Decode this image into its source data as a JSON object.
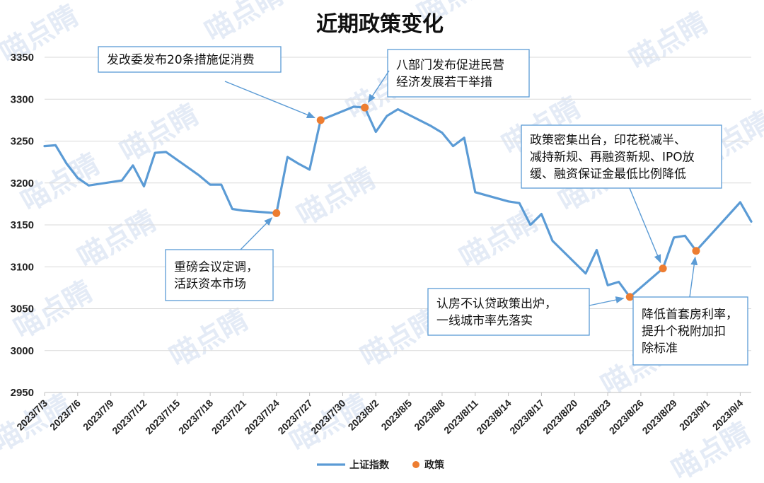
{
  "chart_data": {
    "type": "line",
    "title": "近期政策变化",
    "ylim": [
      2950,
      3350
    ],
    "y_ticks": [
      "3350",
      "3300",
      "3250",
      "3200",
      "3150",
      "3100",
      "3050",
      "3000",
      "2950"
    ],
    "x_ticks": [
      "2023/7/3",
      "2023/7/6",
      "2023/7/9",
      "2023/7/12",
      "2023/7/15",
      "2023/7/18",
      "2023/7/21",
      "2023/7/24",
      "2023/7/27",
      "2023/7/30",
      "2023/8/2",
      "2023/8/5",
      "2023/8/8",
      "2023/8/11",
      "2023/8/14",
      "2023/8/17",
      "2023/8/20",
      "2023/8/23",
      "2023/8/26",
      "2023/8/29",
      "2023/9/1",
      "2023/9/4"
    ],
    "x_start": "2023/7/3",
    "x_end": "2023/9/5",
    "grid": true,
    "legend_position": "bottom",
    "series": [
      {
        "name": "上证指数",
        "color": "#5b9bd5",
        "points": [
          [
            "2023/7/3",
            3244
          ],
          [
            "2023/7/4",
            3245
          ],
          [
            "2023/7/5",
            3223
          ],
          [
            "2023/7/6",
            3206
          ],
          [
            "2023/7/7",
            3197
          ],
          [
            "2023/7/10",
            3203
          ],
          [
            "2023/7/11",
            3221
          ],
          [
            "2023/7/12",
            3196
          ],
          [
            "2023/7/13",
            3236
          ],
          [
            "2023/7/14",
            3237
          ],
          [
            "2023/7/17",
            3209
          ],
          [
            "2023/7/18",
            3198
          ],
          [
            "2023/7/19",
            3198
          ],
          [
            "2023/7/20",
            3169
          ],
          [
            "2023/7/21",
            3167
          ],
          [
            "2023/7/24",
            3164
          ],
          [
            "2023/7/25",
            3231
          ],
          [
            "2023/7/26",
            3223
          ],
          [
            "2023/7/27",
            3216
          ],
          [
            "2023/7/28",
            3275
          ],
          [
            "2023/7/31",
            3291
          ],
          [
            "2023/8/1",
            3290
          ],
          [
            "2023/8/2",
            3261
          ],
          [
            "2023/8/3",
            3280
          ],
          [
            "2023/8/4",
            3288
          ],
          [
            "2023/8/7",
            3268
          ],
          [
            "2023/8/8",
            3260
          ],
          [
            "2023/8/9",
            3244
          ],
          [
            "2023/8/10",
            3254
          ],
          [
            "2023/8/11",
            3189
          ],
          [
            "2023/8/14",
            3178
          ],
          [
            "2023/8/15",
            3176
          ],
          [
            "2023/8/16",
            3150
          ],
          [
            "2023/8/17",
            3163
          ],
          [
            "2023/8/18",
            3131
          ],
          [
            "2023/8/21",
            3092
          ],
          [
            "2023/8/22",
            3120
          ],
          [
            "2023/8/23",
            3078
          ],
          [
            "2023/8/24",
            3082
          ],
          [
            "2023/8/25",
            3064
          ],
          [
            "2023/8/28",
            3098
          ],
          [
            "2023/8/29",
            3135
          ],
          [
            "2023/8/30",
            3137
          ],
          [
            "2023/8/31",
            3119
          ],
          [
            "2023/9/4",
            3177
          ],
          [
            "2023/9/5",
            3154
          ]
        ]
      },
      {
        "name": "政策",
        "color": "#ed7d31",
        "points": [
          [
            "2023/7/24",
            3164
          ],
          [
            "2023/7/28",
            3275
          ],
          [
            "2023/8/1",
            3290
          ],
          [
            "2023/8/25",
            3064
          ],
          [
            "2023/8/28",
            3098
          ],
          [
            "2023/8/31",
            3119
          ]
        ]
      }
    ],
    "annotations": [
      {
        "lines": [
          "发改委发布20条措施促消费"
        ],
        "target": [
          "2023/7/28",
          3275
        ]
      },
      {
        "lines": [
          "八部门发布促进民营",
          "经济发展若干举措"
        ],
        "target": [
          "2023/8/1",
          3290
        ]
      },
      {
        "lines": [
          "重磅会议定调，",
          "活跃资本市场"
        ],
        "target": [
          "2023/7/24",
          3164
        ]
      },
      {
        "lines": [
          "认房不认贷政策出炉，",
          "一线城市率先落实"
        ],
        "target": [
          "2023/8/25",
          3064
        ]
      },
      {
        "lines": [
          "政策密集出台，印花税减半、",
          "减持新规、再融资新规、IPO放",
          "缓、融资保证金最低比例降低"
        ],
        "target": [
          "2023/8/28",
          3098
        ]
      },
      {
        "lines": [
          "降低首套房利率，",
          "提升个税附加扣",
          "除标准"
        ],
        "target": [
          "2023/8/31",
          3119
        ]
      }
    ]
  },
  "watermark": "喵点睛"
}
